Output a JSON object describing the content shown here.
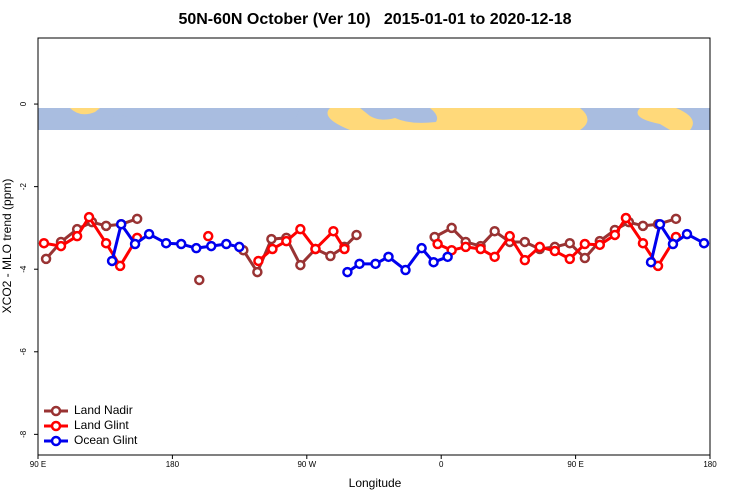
{
  "chart_data": {
    "type": "line",
    "title": "50N-60N October (Ver 10)   2015-01-01 to 2020-12-18",
    "xlabel": "Longitude",
    "ylabel": "XCO2 - MLO trend (ppm)",
    "xlim": [
      90,
      540
    ],
    "ylim": [
      -8.5,
      1.6
    ],
    "xticks": [
      {
        "value": 90,
        "label": "90 E"
      },
      {
        "value": 180,
        "label": "180"
      },
      {
        "value": 270,
        "label": "90 W"
      },
      {
        "value": 360,
        "label": "0"
      },
      {
        "value": 450,
        "label": "90 E"
      },
      {
        "value": 540,
        "label": "180"
      }
    ],
    "yticks": [
      0,
      -2,
      -4,
      -6,
      -8
    ],
    "legend": "bottom-left",
    "series": [
      {
        "name": "Land Nadir",
        "color": "#993333",
        "x": [
          95.4,
          105.4,
          116.2,
          126.2,
          135.6,
          145.7,
          156.4,
          null,
          198,
          null,
          227.5,
          236.9,
          246.3,
          256.3,
          265.7,
          275.8,
          285.8,
          295.2,
          303.3,
          null,
          355.6,
          367,
          376.4,
          386.4,
          395.8,
          405.9,
          416,
          426,
          436.1,
          446.1,
          456.2,
          466.2,
          476.3,
          485.7,
          495.1,
          505.2,
          517.2
        ],
        "values": [
          -3.75,
          -3.34,
          -3.03,
          -2.86,
          -2.95,
          -2.91,
          -2.78,
          null,
          -4.26,
          null,
          -3.54,
          -4.07,
          -3.27,
          -3.24,
          -3.9,
          -3.51,
          -3.68,
          -3.46,
          -3.17,
          null,
          -3.22,
          -3.0,
          -3.34,
          -3.44,
          -3.08,
          -3.34,
          -3.34,
          -3.51,
          -3.46,
          -3.37,
          -3.73,
          -3.32,
          -3.05,
          -2.86,
          -2.95,
          -2.91,
          -2.78
        ]
      },
      {
        "name": "Land Glint",
        "color": "#ff0000",
        "x": [
          94,
          105.4,
          116.2,
          124.2,
          135.6,
          145,
          156.4,
          null,
          204,
          null,
          237.6,
          247,
          256.3,
          265.7,
          275.8,
          287.8,
          295.2,
          null,
          357.6,
          367,
          376.4,
          386.4,
          395.8,
          405.9,
          416,
          426,
          436.1,
          446.1,
          456.2,
          466.2,
          476.3,
          483.7,
          495.1,
          505.2,
          517.2
        ],
        "values": [
          -3.37,
          -3.44,
          -3.2,
          -2.74,
          -3.37,
          -3.92,
          -3.24,
          null,
          -3.2,
          null,
          -3.8,
          -3.51,
          -3.32,
          -3.03,
          -3.51,
          -3.08,
          -3.51,
          null,
          -3.39,
          -3.54,
          -3.46,
          -3.51,
          -3.7,
          -3.2,
          -3.78,
          -3.46,
          -3.56,
          -3.75,
          -3.39,
          -3.41,
          -3.17,
          -2.76,
          -3.37,
          -3.92,
          -3.22
        ]
      },
      {
        "name": "Ocean Glint",
        "color": "#0000ee",
        "x": [
          139.6,
          145.7,
          155,
          164.4,
          175.8,
          185.9,
          196,
          206,
          216.1,
          224.8,
          null,
          297.2,
          305.3,
          316,
          324.7,
          336.1,
          346.9,
          354.9,
          364.3,
          null,
          500.5,
          506.5,
          515.2,
          524.6,
          536
        ],
        "values": [
          -3.8,
          -2.91,
          -3.39,
          -3.15,
          -3.37,
          -3.39,
          -3.49,
          -3.44,
          -3.39,
          -3.46,
          null,
          -4.07,
          -3.87,
          -3.87,
          -3.7,
          -4.02,
          -3.49,
          -3.83,
          -3.7,
          null,
          -3.83,
          -2.91,
          -3.39,
          -3.15,
          -3.37
        ]
      }
    ]
  }
}
